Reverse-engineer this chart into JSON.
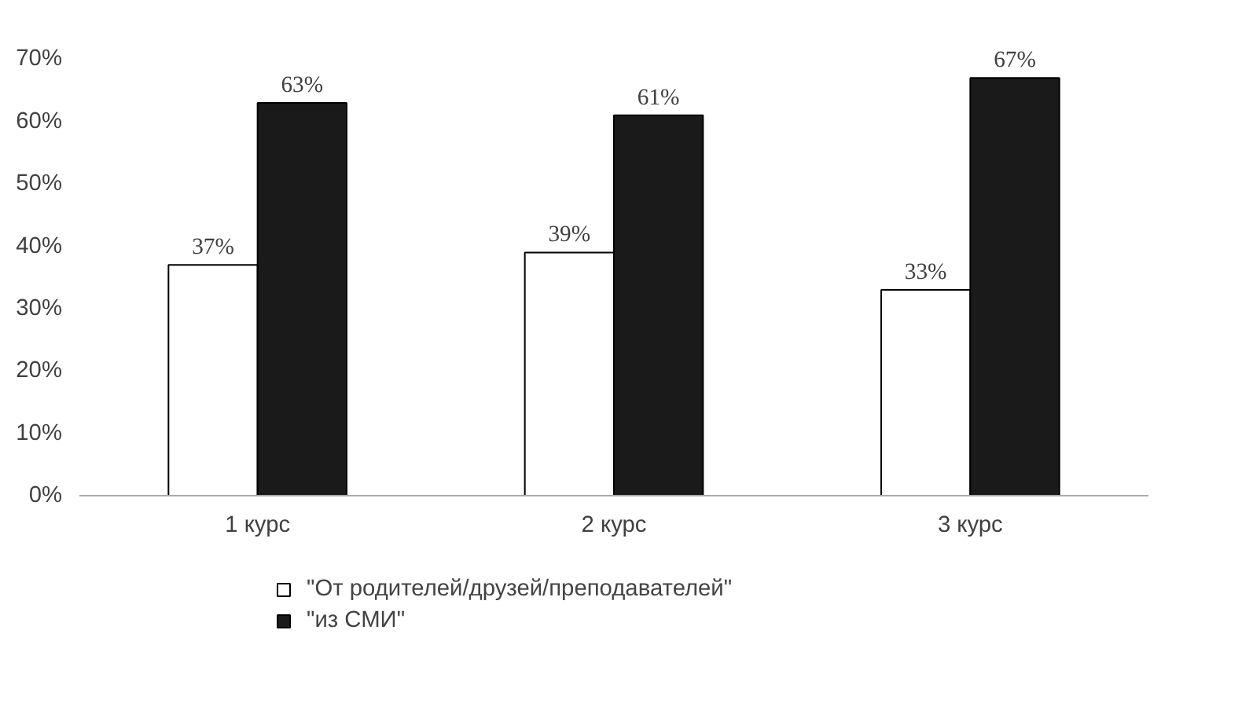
{
  "chart_data": {
    "type": "bar",
    "categories": [
      "1 курс",
      "2 курс",
      "3 курс"
    ],
    "series": [
      {
        "name": "\"От родителей/друзей/преподавателей\"",
        "color": "#ffffff",
        "values": [
          37,
          39,
          33
        ]
      },
      {
        "name": "\"из СМИ\"",
        "color": "#1a1a1a",
        "values": [
          63,
          61,
          67
        ]
      }
    ],
    "ylim": [
      0,
      70
    ],
    "yticks": [
      {
        "value": 0,
        "label": "0%"
      },
      {
        "value": 10,
        "label": "10%"
      },
      {
        "value": 20,
        "label": "20%"
      },
      {
        "value": 30,
        "label": "30%"
      },
      {
        "value": 40,
        "label": "40%"
      },
      {
        "value": 50,
        "label": "50%"
      },
      {
        "value": 60,
        "label": "60%"
      },
      {
        "value": 70,
        "label": "70%"
      }
    ],
    "value_labels": [
      [
        "37%",
        "39%",
        "33%"
      ],
      [
        "63%",
        "61%",
        "67%"
      ]
    ],
    "grid": false,
    "legend": "bottom"
  }
}
